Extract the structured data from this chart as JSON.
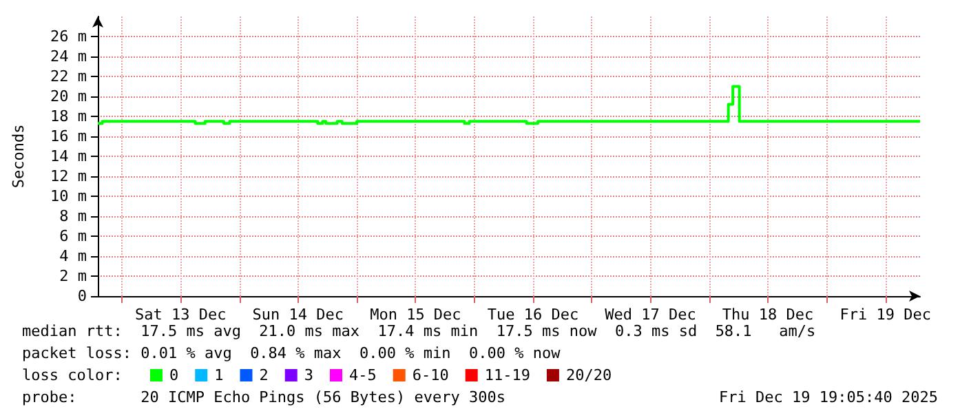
{
  "chart_data": {
    "type": "step",
    "ylabel": "Seconds",
    "xlim": [
      "2025-12-12T19:05",
      "2025-12-19T19:05"
    ],
    "xticks": [
      {
        "value": "2025-12-13T00:00",
        "label": null
      },
      {
        "value": "2025-12-13T12:00",
        "label": "Sat 13 Dec"
      },
      {
        "value": "2025-12-14T00:00",
        "label": null
      },
      {
        "value": "2025-12-14T12:00",
        "label": "Sun 14 Dec"
      },
      {
        "value": "2025-12-15T00:00",
        "label": null
      },
      {
        "value": "2025-12-15T12:00",
        "label": "Mon 15 Dec"
      },
      {
        "value": "2025-12-16T00:00",
        "label": null
      },
      {
        "value": "2025-12-16T12:00",
        "label": "Tue 16 Dec"
      },
      {
        "value": "2025-12-17T00:00",
        "label": null
      },
      {
        "value": "2025-12-17T12:00",
        "label": "Wed 17 Dec"
      },
      {
        "value": "2025-12-18T00:00",
        "label": null
      },
      {
        "value": "2025-12-18T12:00",
        "label": "Thu 18 Dec"
      },
      {
        "value": "2025-12-19T00:00",
        "label": null
      },
      {
        "value": "2025-12-19T12:00",
        "label": "Fri 19 Dec"
      }
    ],
    "ylim": [
      0,
      28
    ],
    "yticks": [
      0,
      {
        "value": 2,
        "label": "2 m"
      },
      {
        "value": 4,
        "label": "4 m"
      },
      {
        "value": 6,
        "label": "6 m"
      },
      {
        "value": 8,
        "label": "8 m"
      },
      {
        "value": 10,
        "label": "10 m"
      },
      {
        "value": 12,
        "label": "12 m"
      },
      {
        "value": 14,
        "label": "14 m"
      },
      {
        "value": 16,
        "label": "16 m"
      },
      {
        "value": 18,
        "label": "18 m"
      },
      {
        "value": 20,
        "label": "20 m"
      },
      {
        "value": 22,
        "label": "22 m"
      },
      {
        "value": 24,
        "label": "24 m"
      },
      {
        "value": 26,
        "label": "26 m"
      }
    ],
    "grid": true,
    "legend": "bottom left",
    "marker": "none",
    "x": [
      "2025-12-12T19:05",
      "2025-12-12T20:00",
      "2025-12-13T15:00",
      "2025-12-13T17:00",
      "2025-12-13T20:50",
      "2025-12-13T22:00",
      "2025-12-14T16:00",
      "2025-12-14T17:00",
      "2025-12-14T17:40",
      "2025-12-14T20:00",
      "2025-12-14T21:00",
      "2025-12-15T00:00",
      "2025-12-15T22:00",
      "2025-12-15T23:00",
      "2025-12-16T10:40",
      "2025-12-16T13:00",
      "2025-12-18T03:55",
      "2025-12-18T04:50",
      "2025-12-18T06:10",
      "2025-12-19T19:05"
    ],
    "series": [
      {
        "name": "0",
        "color": "#00ff00",
        "values": [
          17.3,
          17.5,
          17.3,
          17.5,
          17.3,
          17.5,
          17.3,
          17.5,
          17.3,
          17.5,
          17.3,
          17.5,
          17.3,
          17.5,
          17.3,
          17.5,
          19.2,
          21.0,
          17.5,
          17.5
        ]
      },
      {
        "name": "1",
        "color": "#00b8ff",
        "values": [
          null,
          null,
          null,
          null,
          null,
          null,
          null,
          null,
          null,
          null,
          null,
          null,
          null,
          null,
          null,
          null,
          null,
          null,
          null,
          null
        ]
      },
      {
        "name": "2",
        "color": "#0059ff",
        "values": [
          null,
          null,
          null,
          null,
          null,
          null,
          null,
          null,
          null,
          null,
          null,
          null,
          null,
          null,
          null,
          null,
          null,
          null,
          null,
          null
        ]
      },
      {
        "name": "3",
        "color": "#7e00ff",
        "values": [
          null,
          null,
          null,
          null,
          null,
          null,
          null,
          null,
          null,
          null,
          null,
          null,
          null,
          null,
          null,
          null,
          null,
          null,
          null,
          null
        ]
      },
      {
        "name": "4-5",
        "color": "#ff00ff",
        "values": [
          null,
          null,
          null,
          null,
          null,
          null,
          null,
          null,
          null,
          null,
          null,
          null,
          null,
          null,
          null,
          null,
          null,
          null,
          null,
          null
        ]
      },
      {
        "name": "6-10",
        "color": "#ff5500",
        "values": [
          null,
          null,
          null,
          null,
          null,
          null,
          null,
          null,
          null,
          null,
          null,
          null,
          null,
          null,
          null,
          null,
          null,
          null,
          null,
          null
        ]
      },
      {
        "name": "11-19",
        "color": "#ff0000",
        "values": [
          null,
          null,
          null,
          null,
          null,
          null,
          null,
          null,
          null,
          null,
          null,
          null,
          null,
          null,
          null,
          null,
          null,
          null,
          null,
          null
        ]
      },
      {
        "name": "20/20",
        "color": "#a10000",
        "values": [
          null,
          null,
          null,
          null,
          null,
          null,
          null,
          null,
          null,
          null,
          null,
          null,
          null,
          null,
          null,
          null,
          null,
          null,
          null,
          null
        ]
      }
    ],
    "annotations": [
      "median rtt:  17.5 ms avg  21.0 ms max  17.4 ms min  17.5 ms now  0.3 ms sd  58.1   am/s",
      "packet loss: 0.01 % avg  0.84 % max  0.00 % min  0.00 % now",
      "loss color:",
      "probe:       20 ICMP Echo Pings (56 Bytes) every 300s",
      "Fri Dec 19 19:05:40 2025"
    ]
  }
}
